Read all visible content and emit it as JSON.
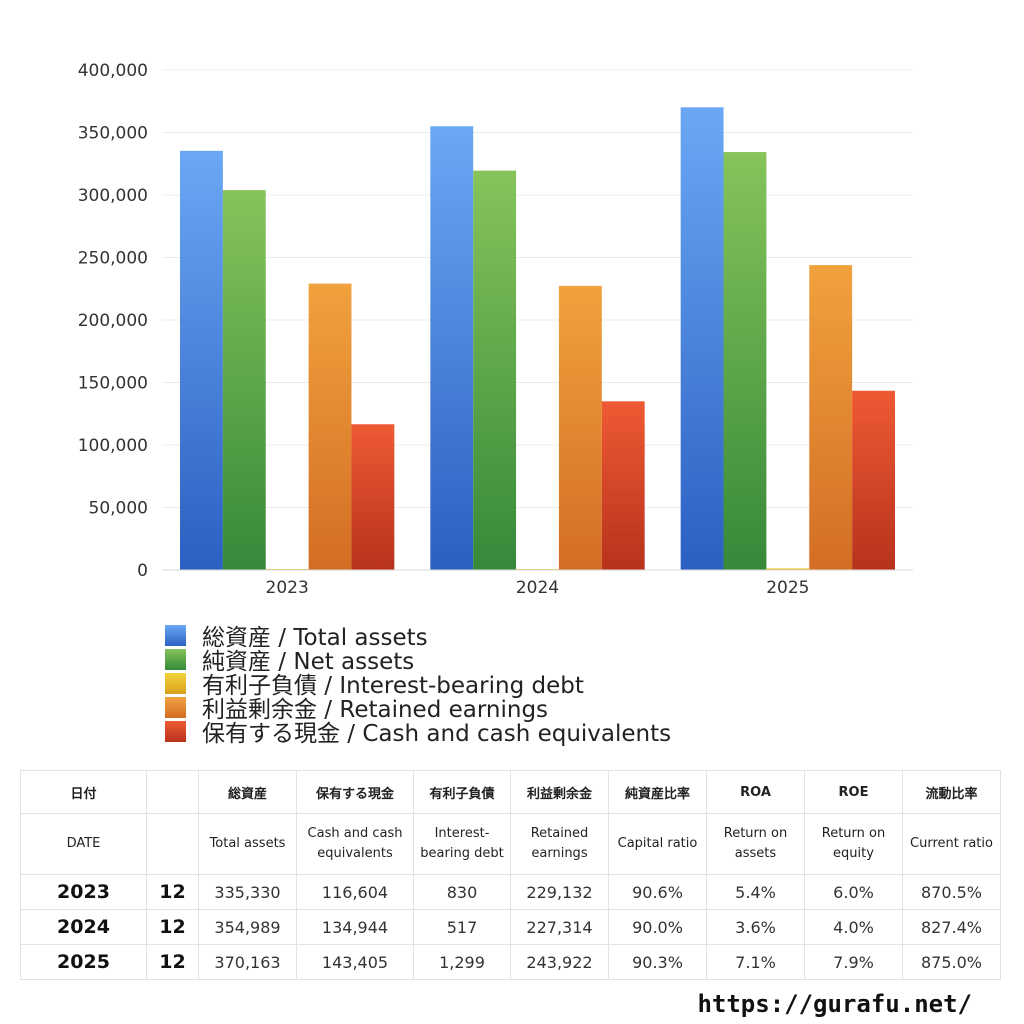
{
  "chart_data": {
    "type": "bar",
    "categories": [
      "2023",
      "2024",
      "2025"
    ],
    "ylim": [
      0,
      400000
    ],
    "yticks": [
      "0",
      "50,000",
      "100,000",
      "150,000",
      "200,000",
      "250,000",
      "300,000",
      "350,000",
      "400,000"
    ],
    "grid": true,
    "legend_position": "bottom",
    "series": [
      {
        "name": "総資産 / Total assets",
        "values": [
          335330,
          354989,
          370163
        ],
        "color_top": "#6aa8f5",
        "color_bottom": "#2b5fc2"
      },
      {
        "name": "純資産 / Net assets",
        "values": [
          303909,
          319500,
          334357
        ],
        "color_top": "#86c45a",
        "color_bottom": "#36893a"
      },
      {
        "name": "有利子負債 / Interest-bearing debt",
        "values": [
          830,
          517,
          1299
        ],
        "color_top": "#f2d43a",
        "color_bottom": "#d9a11a"
      },
      {
        "name": "利益剰余金 / Retained earnings",
        "values": [
          229132,
          227314,
          243922
        ],
        "color_top": "#f0a23e",
        "color_bottom": "#d46d24"
      },
      {
        "name": "保有する現金 /  Cash and cash equivalents",
        "values": [
          116604,
          134944,
          143405
        ],
        "color_top": "#ee5a33",
        "color_bottom": "#b8321c"
      }
    ]
  },
  "table": {
    "headers_jp": [
      "日付",
      "",
      "総資産",
      "保有する現金",
      "有利子負債",
      "利益剰余金",
      "純資産比率",
      "ROA",
      "ROE",
      "流動比率"
    ],
    "headers_en": [
      "DATE",
      "",
      "Total assets",
      "Cash and cash equivalents",
      "Interest-bearing debt",
      "Retained earnings",
      "Capital ratio",
      "Return on assets",
      "Return on equity",
      "Current ratio"
    ],
    "rows": [
      [
        "2023",
        "12",
        "335,330",
        "116,604",
        "830",
        "229,132",
        "90.6%",
        "5.4%",
        "6.0%",
        "870.5%"
      ],
      [
        "2024",
        "12",
        "354,989",
        "134,944",
        "517",
        "227,314",
        "90.0%",
        "3.6%",
        "4.0%",
        "827.4%"
      ],
      [
        "2025",
        "12",
        "370,163",
        "143,405",
        "1,299",
        "243,922",
        "90.3%",
        "7.1%",
        "7.9%",
        "875.0%"
      ]
    ]
  },
  "credit": "https://gurafu.net/"
}
